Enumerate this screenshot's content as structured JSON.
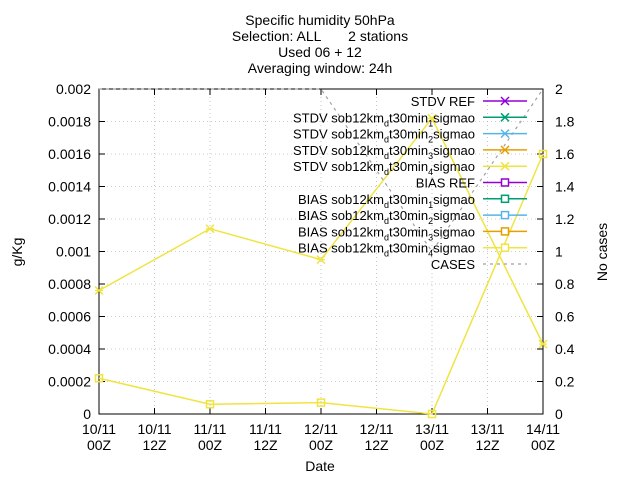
{
  "chart_data": {
    "type": "line",
    "title_lines": [
      "Specific humidity 50hPa",
      "Selection: ALL       2 stations",
      "Used 06 + 12",
      "Averaging window: 24h"
    ],
    "xlabel": "Date",
    "ylabel": "g/Kg",
    "y2label": "No cases",
    "x_ticks": [
      {
        "top": "10/11",
        "bottom": "00Z"
      },
      {
        "top": "10/11",
        "bottom": "12Z"
      },
      {
        "top": "11/11",
        "bottom": "00Z"
      },
      {
        "top": "11/11",
        "bottom": "12Z"
      },
      {
        "top": "12/11",
        "bottom": "00Z"
      },
      {
        "top": "12/11",
        "bottom": "12Z"
      },
      {
        "top": "13/11",
        "bottom": "00Z"
      },
      {
        "top": "13/11",
        "bottom": "12Z"
      },
      {
        "top": "14/11",
        "bottom": "00Z"
      }
    ],
    "y_ticks": [
      "0",
      "0.0002",
      "0.0004",
      "0.0006",
      "0.0008",
      "0.001",
      "0.0012",
      "0.0014",
      "0.0016",
      "0.0018",
      "0.002"
    ],
    "y2_ticks": [
      "0",
      "0.2",
      "0.4",
      "0.6",
      "0.8",
      "1",
      "1.2",
      "1.4",
      "1.6",
      "1.8",
      "2"
    ],
    "ylim": [
      0,
      0.002
    ],
    "y2lim": [
      0,
      2
    ],
    "grid": true,
    "legend_position": "top-right",
    "legend": [
      {
        "pre": "STDV REF",
        "sub": "",
        "post": "",
        "color": "#9400d3",
        "marker": "x",
        "dashed": false
      },
      {
        "pre": "STDV sob12km",
        "sub": "d",
        "post": "t30min",
        "sub2": "1",
        "post2": "sigmao",
        "color": "#009e73",
        "marker": "x",
        "dashed": false
      },
      {
        "pre": "STDV sob12km",
        "sub": "d",
        "post": "t30min",
        "sub2": "2",
        "post2": "sigmao",
        "color": "#56b4e9",
        "marker": "x",
        "dashed": false
      },
      {
        "pre": "STDV sob12km",
        "sub": "d",
        "post": "t30min",
        "sub2": "3",
        "post2": "sigmao",
        "color": "#e69f00",
        "marker": "x",
        "dashed": false
      },
      {
        "pre": "STDV sob12km",
        "sub": "d",
        "post": "t30min",
        "sub2": "4",
        "post2": "sigmao",
        "color": "#f0e442",
        "marker": "x",
        "dashed": false
      },
      {
        "pre": "BIAS REF",
        "sub": "",
        "post": "",
        "color": "#9400d3",
        "marker": "square",
        "dashed": false
      },
      {
        "pre": "BIAS sob12km",
        "sub": "d",
        "post": "t30min",
        "sub2": "1",
        "post2": "sigmao",
        "color": "#009e73",
        "marker": "square",
        "dashed": false
      },
      {
        "pre": "BIAS sob12km",
        "sub": "d",
        "post": "t30min",
        "sub2": "2",
        "post2": "sigmao",
        "color": "#56b4e9",
        "marker": "square",
        "dashed": false
      },
      {
        "pre": "BIAS sob12km",
        "sub": "d",
        "post": "t30min",
        "sub2": "3",
        "post2": "sigmao",
        "color": "#e69f00",
        "marker": "square",
        "dashed": false
      },
      {
        "pre": "BIAS sob12km",
        "sub": "d",
        "post": "t30min",
        "sub2": "4",
        "post2": "sigmao",
        "color": "#f0e442",
        "marker": "square",
        "dashed": false
      },
      {
        "pre": "CASES",
        "sub": "",
        "post": "",
        "color": "#a0a0a0",
        "marker": "none",
        "dashed": true
      }
    ],
    "x_index": [
      0,
      2,
      4,
      6,
      8
    ],
    "series": [
      {
        "name": "STDV sob12kmdt30min4sigmao",
        "color": "#f0e442",
        "marker": "x",
        "axis": "y1",
        "values": [
          0.00076,
          0.00114,
          0.00095,
          0.00182,
          0.00043
        ]
      },
      {
        "name": "BIAS sob12kmdt30min4sigmao",
        "color": "#f0e442",
        "marker": "square",
        "axis": "y1",
        "values": [
          0.00022,
          6e-05,
          7e-05,
          0.0,
          0.0016
        ]
      },
      {
        "name": "CASES",
        "color": "#a0a0a0",
        "marker": "none",
        "axis": "y2",
        "dashed": true,
        "values": [
          2,
          2,
          2,
          1,
          2
        ]
      }
    ]
  }
}
